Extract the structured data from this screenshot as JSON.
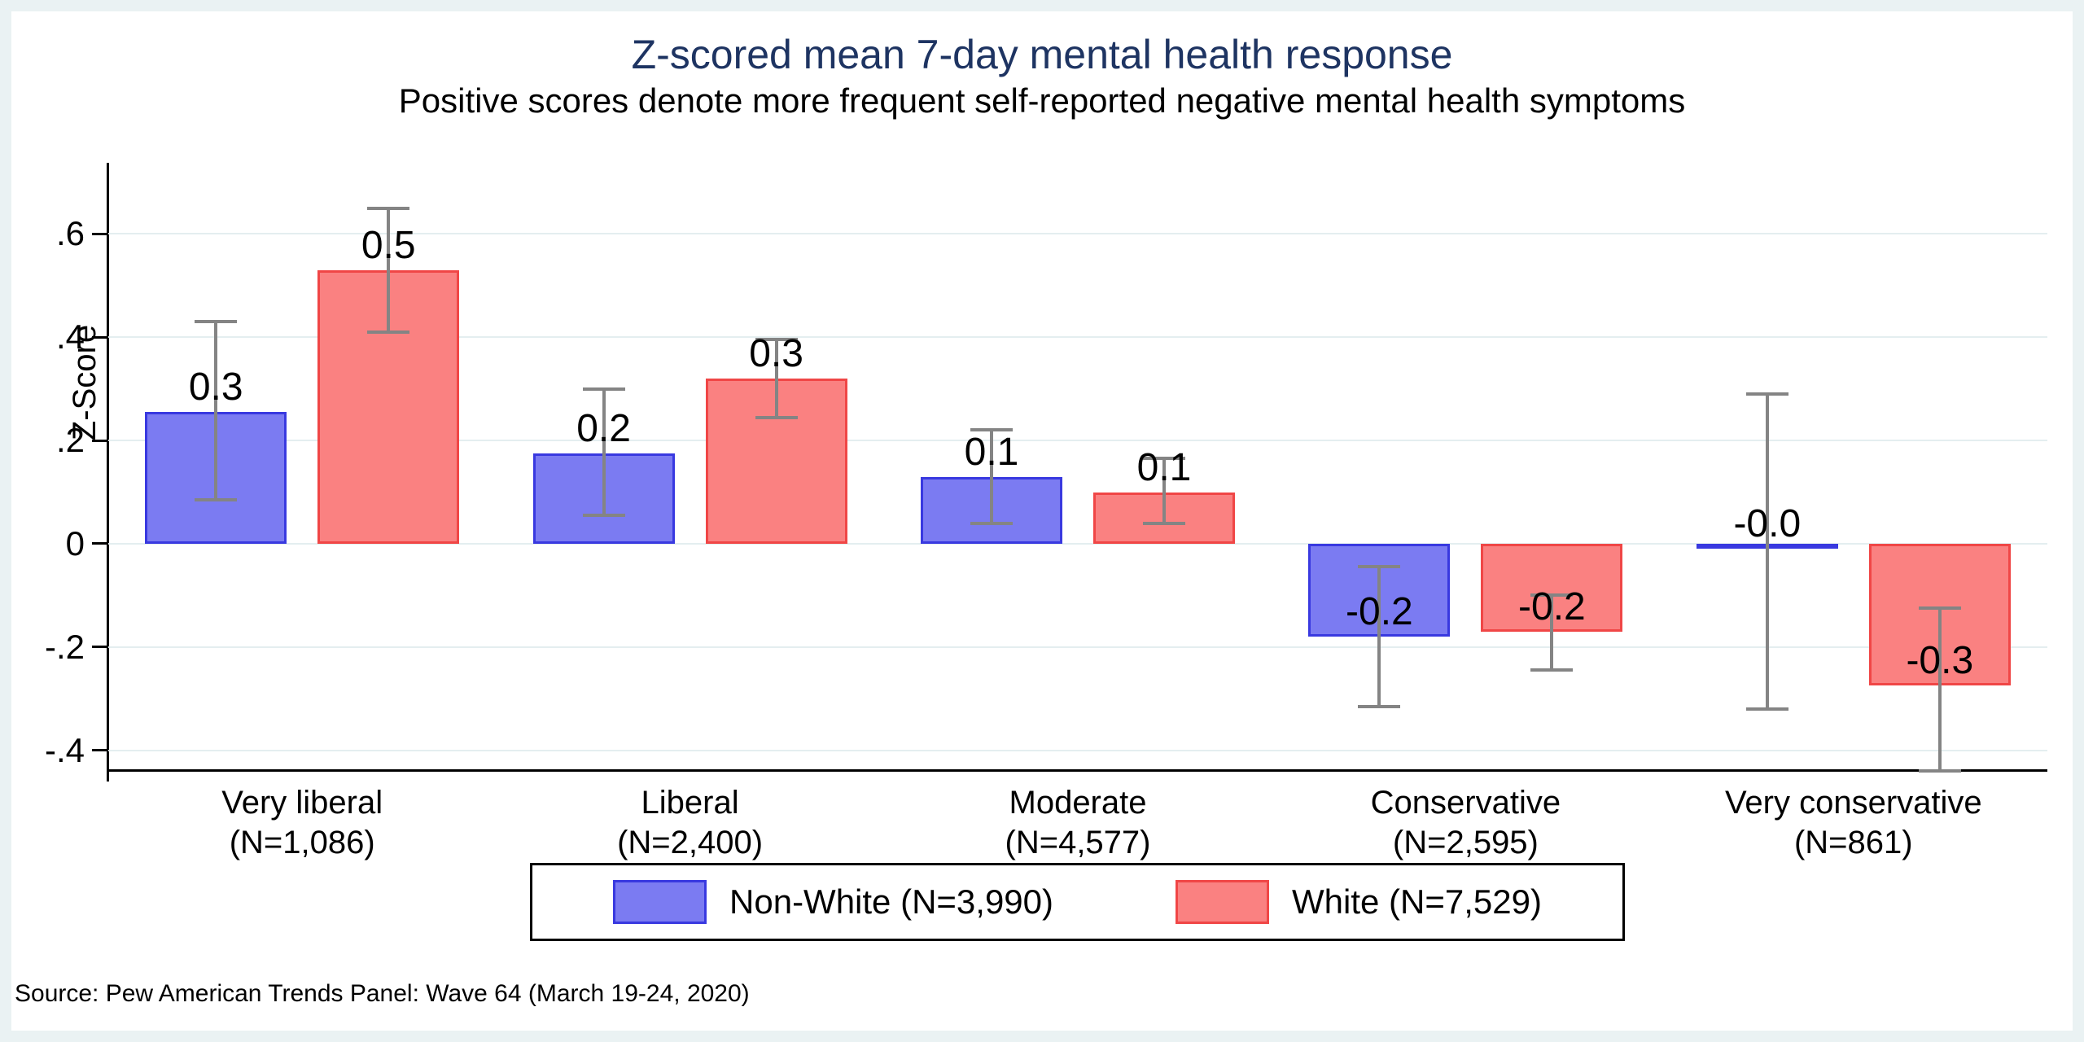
{
  "title": "Z-scored mean 7-day mental health response",
  "subtitle": "Positive scores denote more frequent self-reported negative mental health symptoms",
  "source_note": "Source: Pew American Trends Panel: Wave 64 (March 19-24, 2020)",
  "colors": {
    "background_frame": "#eaf2f3",
    "plot_background": "#ffffff",
    "gridline": "#e4eef0",
    "title": "#1e3462",
    "nonwhite_fill": "#7b7bf2",
    "nonwhite_border": "#3939e0",
    "white_fill": "#fa8181",
    "white_border": "#f04646",
    "error_bar": "#848484",
    "axis": "#000000"
  },
  "legend": {
    "items": [
      {
        "label": "Non-White (N=3,990)",
        "color": "#7b7bf2"
      },
      {
        "label": "White (N=7,529)",
        "color": "#fa8181"
      }
    ]
  },
  "chart_data": {
    "type": "bar",
    "title": "Z-scored mean 7-day mental health response",
    "subtitle": "Positive scores denote more frequent self-reported negative mental health symptoms",
    "xlabel": "",
    "ylabel": "Z-Score",
    "ylim": [
      -0.44,
      0.73
    ],
    "grid": true,
    "legend_position": "bottom",
    "error_bars": true,
    "yticks": [
      {
        "value": 0.6,
        "label": ".6"
      },
      {
        "value": 0.4,
        "label": ".4"
      },
      {
        "value": 0.2,
        "label": ".2"
      },
      {
        "value": 0,
        "label": "0"
      },
      {
        "value": -0.2,
        "label": "-.2"
      },
      {
        "value": -0.4,
        "label": "-.4"
      }
    ],
    "categories": [
      {
        "label": "Very liberal",
        "n_label": "(N=1,086)"
      },
      {
        "label": "Liberal",
        "n_label": "(N=2,400)"
      },
      {
        "label": "Moderate",
        "n_label": "(N=4,577)"
      },
      {
        "label": "Conservative",
        "n_label": "(N=2,595)"
      },
      {
        "label": "Very conservative",
        "n_label": "(N=861)"
      }
    ],
    "series": [
      {
        "name": "Non-White (N=3,990)",
        "fill": "#7b7bf2",
        "border": "#3939e0",
        "values": [
          0.255,
          0.175,
          0.13,
          -0.18,
          -0.01
        ],
        "labels": [
          "0.3",
          "0.2",
          "0.1",
          "-0.2",
          "-0.0"
        ],
        "ci_low": [
          0.085,
          0.055,
          0.04,
          -0.315,
          -0.32
        ],
        "ci_high": [
          0.43,
          0.3,
          0.22,
          -0.045,
          0.29
        ]
      },
      {
        "name": "White (N=7,529)",
        "fill": "#fa8181",
        "border": "#f04646",
        "values": [
          0.53,
          0.32,
          0.1,
          -0.17,
          -0.275
        ],
        "labels": [
          "0.5",
          "0.3",
          "0.1",
          "-0.2",
          "-0.3"
        ],
        "ci_low": [
          0.41,
          0.245,
          0.04,
          -0.245,
          -0.44
        ],
        "ci_high": [
          0.65,
          0.395,
          0.165,
          -0.1,
          -0.125
        ]
      }
    ]
  }
}
